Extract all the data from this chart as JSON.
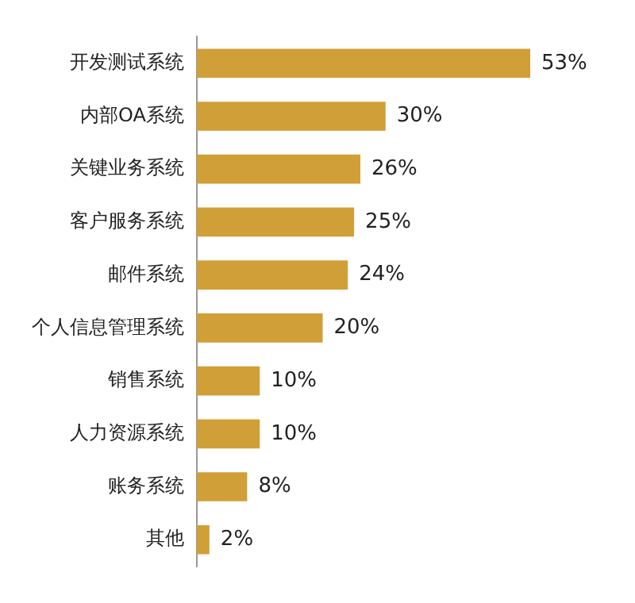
{
  "chart_data": {
    "type": "bar",
    "orientation": "horizontal",
    "categories": [
      "开发测试系统",
      "内部OA系统",
      "关键业务系统",
      "客户服务系统",
      "邮件系统",
      "个人信息管理系统",
      "销售系统",
      "人力资源系统",
      "账务系统",
      "其他"
    ],
    "values": [
      53,
      30,
      26,
      25,
      24,
      20,
      10,
      10,
      8,
      2
    ],
    "value_labels": [
      "53%",
      "30%",
      "26%",
      "25%",
      "24%",
      "20%",
      "10%",
      "10%",
      "8%",
      "2%"
    ],
    "color": "#d19f37",
    "legend": false
  }
}
